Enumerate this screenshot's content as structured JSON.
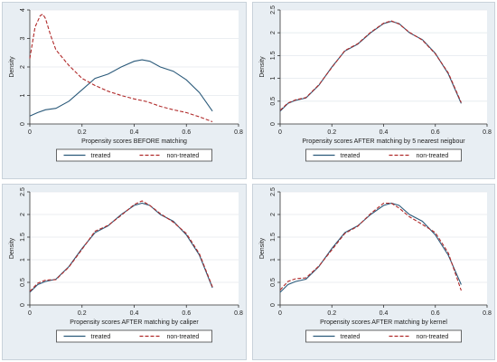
{
  "colors": {
    "treated": "#2b5a7a",
    "non_treated": "#b02a2a",
    "panel_bg": "#e8eef3"
  },
  "chart_data": [
    {
      "type": "line",
      "xlabel": "Propensity scores BEFORE matching",
      "ylabel": "Density",
      "xlim": [
        0,
        0.8
      ],
      "ylim": [
        0,
        4
      ],
      "xticks": [
        0,
        0.2,
        0.4,
        0.6,
        0.8
      ],
      "yticks": [
        0,
        1,
        2,
        3,
        4
      ],
      "legend": "bottom",
      "series": [
        {
          "name": "treated",
          "style": "solid",
          "x": [
            0,
            0.03,
            0.06,
            0.1,
            0.15,
            0.2,
            0.25,
            0.3,
            0.35,
            0.4,
            0.43,
            0.46,
            0.5,
            0.55,
            0.6,
            0.65,
            0.7
          ],
          "y": [
            0.28,
            0.4,
            0.5,
            0.55,
            0.8,
            1.2,
            1.6,
            1.75,
            2.0,
            2.2,
            2.25,
            2.2,
            2.0,
            1.85,
            1.55,
            1.1,
            0.45
          ]
        },
        {
          "name": "non-treated",
          "style": "dashed",
          "x": [
            0,
            0.02,
            0.04,
            0.05,
            0.06,
            0.08,
            0.1,
            0.15,
            0.2,
            0.25,
            0.3,
            0.35,
            0.4,
            0.45,
            0.5,
            0.55,
            0.6,
            0.65,
            0.7
          ],
          "y": [
            2.3,
            3.4,
            3.8,
            3.85,
            3.7,
            3.1,
            2.6,
            2.05,
            1.6,
            1.35,
            1.15,
            1.0,
            0.88,
            0.78,
            0.62,
            0.5,
            0.4,
            0.25,
            0.08
          ]
        }
      ]
    },
    {
      "type": "line",
      "xlabel": "Propensity scores AFTER matching by 5 nearest neigbour",
      "ylabel": "Density",
      "xlim": [
        0,
        0.8
      ],
      "ylim": [
        0,
        2.5
      ],
      "xticks": [
        0,
        0.2,
        0.4,
        0.6,
        0.8
      ],
      "yticks": [
        0,
        0.5,
        1,
        1.5,
        2,
        2.5
      ],
      "legend": "bottom",
      "series": [
        {
          "name": "treated",
          "style": "solid",
          "x": [
            0,
            0.03,
            0.06,
            0.1,
            0.15,
            0.2,
            0.25,
            0.3,
            0.35,
            0.4,
            0.43,
            0.46,
            0.5,
            0.55,
            0.6,
            0.65,
            0.7
          ],
          "y": [
            0.28,
            0.45,
            0.52,
            0.57,
            0.85,
            1.25,
            1.6,
            1.75,
            2.0,
            2.2,
            2.25,
            2.2,
            2.0,
            1.85,
            1.55,
            1.1,
            0.45
          ]
        },
        {
          "name": "non-treated",
          "style": "dashed",
          "x": [
            0,
            0.03,
            0.06,
            0.1,
            0.15,
            0.2,
            0.25,
            0.3,
            0.35,
            0.4,
            0.43,
            0.46,
            0.5,
            0.55,
            0.6,
            0.65,
            0.7
          ],
          "y": [
            0.3,
            0.46,
            0.53,
            0.58,
            0.86,
            1.24,
            1.61,
            1.76,
            2.01,
            2.21,
            2.26,
            2.19,
            2.01,
            1.84,
            1.54,
            1.12,
            0.47
          ]
        }
      ]
    },
    {
      "type": "line",
      "xlabel": "Propensity scores AFTER matching by caliper",
      "ylabel": "Density",
      "xlim": [
        0,
        0.8
      ],
      "ylim": [
        0,
        2.5
      ],
      "xticks": [
        0,
        0.2,
        0.4,
        0.6,
        0.8
      ],
      "yticks": [
        0,
        0.5,
        1,
        1.5,
        2,
        2.5
      ],
      "legend": "bottom",
      "series": [
        {
          "name": "treated",
          "style": "solid",
          "x": [
            0,
            0.03,
            0.06,
            0.1,
            0.15,
            0.2,
            0.25,
            0.3,
            0.35,
            0.4,
            0.43,
            0.46,
            0.5,
            0.55,
            0.6,
            0.65,
            0.7
          ],
          "y": [
            0.28,
            0.45,
            0.52,
            0.57,
            0.85,
            1.25,
            1.6,
            1.75,
            2.0,
            2.2,
            2.25,
            2.2,
            2.0,
            1.85,
            1.55,
            1.1,
            0.38
          ]
        },
        {
          "name": "non-treated",
          "style": "dashed",
          "x": [
            0,
            0.03,
            0.06,
            0.1,
            0.15,
            0.2,
            0.25,
            0.3,
            0.35,
            0.4,
            0.43,
            0.46,
            0.5,
            0.55,
            0.6,
            0.65,
            0.7
          ],
          "y": [
            0.3,
            0.48,
            0.55,
            0.56,
            0.84,
            1.23,
            1.63,
            1.76,
            1.98,
            2.22,
            2.3,
            2.2,
            2.02,
            1.83,
            1.58,
            1.13,
            0.4
          ]
        }
      ]
    },
    {
      "type": "line",
      "xlabel": "Propensity scores AFTER matching by kernel",
      "ylabel": "Density",
      "xlim": [
        0,
        0.8
      ],
      "ylim": [
        0,
        2.5
      ],
      "xticks": [
        0,
        0.2,
        0.4,
        0.6,
        0.8
      ],
      "yticks": [
        0,
        0.5,
        1,
        1.5,
        2,
        2.5
      ],
      "legend": "bottom",
      "series": [
        {
          "name": "treated",
          "style": "solid",
          "x": [
            0,
            0.03,
            0.06,
            0.1,
            0.15,
            0.2,
            0.25,
            0.3,
            0.35,
            0.4,
            0.43,
            0.46,
            0.5,
            0.55,
            0.6,
            0.65,
            0.7
          ],
          "y": [
            0.28,
            0.45,
            0.52,
            0.57,
            0.85,
            1.25,
            1.6,
            1.75,
            2.0,
            2.2,
            2.25,
            2.2,
            2.0,
            1.85,
            1.55,
            1.1,
            0.45
          ]
        },
        {
          "name": "non-treated",
          "style": "dashed",
          "x": [
            0,
            0.03,
            0.06,
            0.1,
            0.15,
            0.2,
            0.25,
            0.3,
            0.35,
            0.4,
            0.43,
            0.46,
            0.5,
            0.55,
            0.6,
            0.65,
            0.7
          ],
          "y": [
            0.33,
            0.52,
            0.58,
            0.6,
            0.86,
            1.22,
            1.58,
            1.74,
            2.02,
            2.25,
            2.25,
            2.14,
            1.95,
            1.78,
            1.6,
            1.15,
            0.32
          ]
        }
      ]
    }
  ]
}
